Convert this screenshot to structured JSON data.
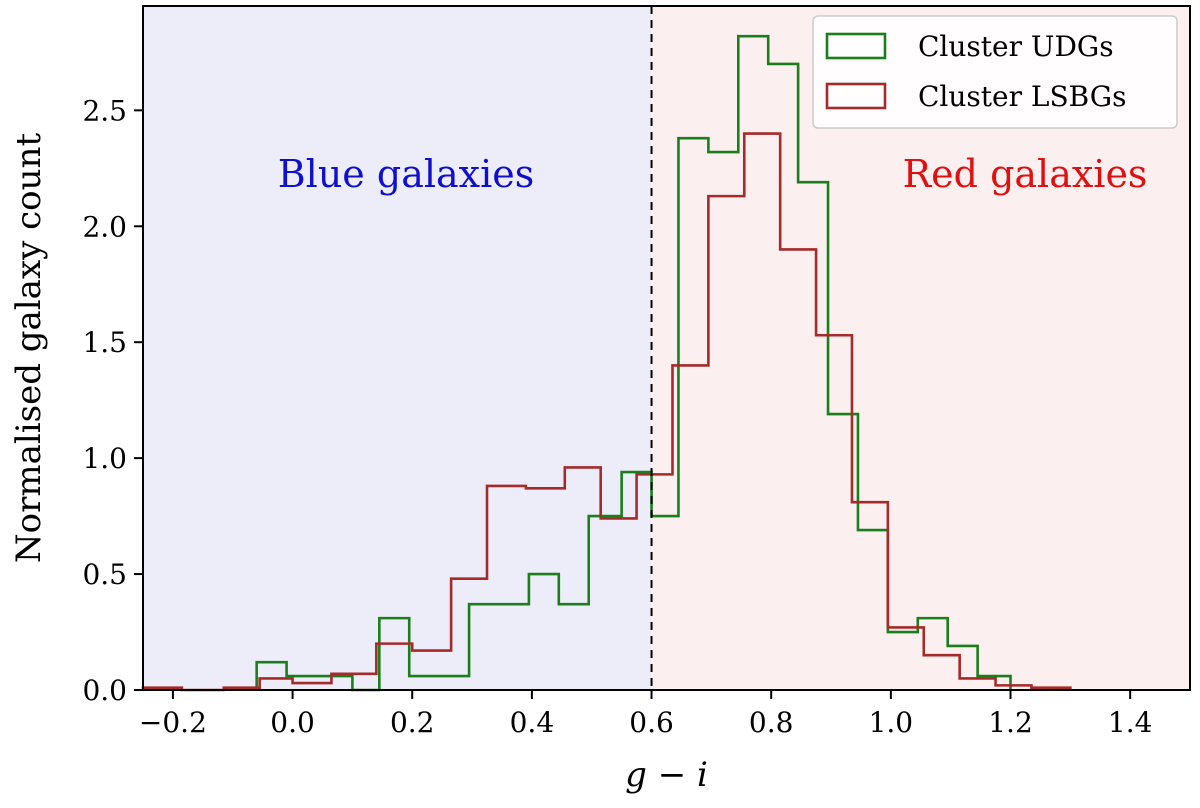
{
  "chart_data": {
    "type": "histogram",
    "title": "",
    "xlabel": "g − i",
    "ylabel": "Normalised galaxy count",
    "xlim": [
      -0.25,
      1.5
    ],
    "ylim": [
      0,
      2.95
    ],
    "x_ticks": [
      -0.2,
      0.0,
      0.2,
      0.4,
      0.6,
      0.8,
      1.0,
      1.2,
      1.4
    ],
    "x_tick_labels": [
      "−0.2",
      "0.0",
      "0.2",
      "0.4",
      "0.6",
      "0.8",
      "1.0",
      "1.2",
      "1.4"
    ],
    "y_ticks": [
      0.0,
      0.5,
      1.0,
      1.5,
      2.0,
      2.5
    ],
    "y_tick_labels": [
      "0.0",
      "0.5",
      "1.0",
      "1.5",
      "2.0",
      "2.5"
    ],
    "grid": false,
    "divider": {
      "x": 0.6,
      "style": "dashed"
    },
    "regions": [
      {
        "label": "Blue galaxies",
        "x_range": [
          -0.25,
          0.6
        ],
        "fill": "#ededfa",
        "text_color": "#1010cc"
      },
      {
        "label": "Red galaxies",
        "x_range": [
          0.6,
          1.5
        ],
        "fill": "#fcefef",
        "text_color": "#e01010"
      }
    ],
    "legend_position": "top-right",
    "series": [
      {
        "name": "Cluster UDGs",
        "color": "#1a7f1a",
        "bin_edges": [
          -0.06,
          -0.01,
          0.045,
          0.1,
          0.145,
          0.195,
          0.245,
          0.295,
          0.345,
          0.395,
          0.445,
          0.495,
          0.55,
          0.6,
          0.645,
          0.695,
          0.745,
          0.795,
          0.845,
          0.895,
          0.945,
          0.995,
          1.045,
          1.095,
          1.145,
          1.2
        ],
        "counts": [
          0.12,
          0.06,
          0.06,
          0.0,
          0.31,
          0.06,
          0.06,
          0.37,
          0.37,
          0.5,
          0.37,
          0.75,
          0.94,
          0.75,
          2.38,
          2.32,
          2.82,
          2.7,
          2.19,
          1.19,
          0.69,
          0.25,
          0.31,
          0.19,
          0.06
        ]
      },
      {
        "name": "Cluster LSBGs",
        "color": "#a52a2a",
        "bin_edges": [
          -0.25,
          -0.185,
          -0.115,
          -0.055,
          0.0,
          0.065,
          0.14,
          0.2,
          0.265,
          0.325,
          0.39,
          0.455,
          0.515,
          0.575,
          0.635,
          0.695,
          0.755,
          0.815,
          0.875,
          0.935,
          0.995,
          1.055,
          1.115,
          1.175,
          1.235,
          1.3
        ],
        "counts": [
          0.01,
          0.0,
          0.01,
          0.05,
          0.03,
          0.07,
          0.2,
          0.17,
          0.48,
          0.88,
          0.87,
          0.96,
          0.74,
          0.93,
          1.4,
          2.13,
          2.4,
          1.9,
          1.53,
          0.81,
          0.27,
          0.15,
          0.05,
          0.02,
          0.01
        ]
      }
    ]
  }
}
